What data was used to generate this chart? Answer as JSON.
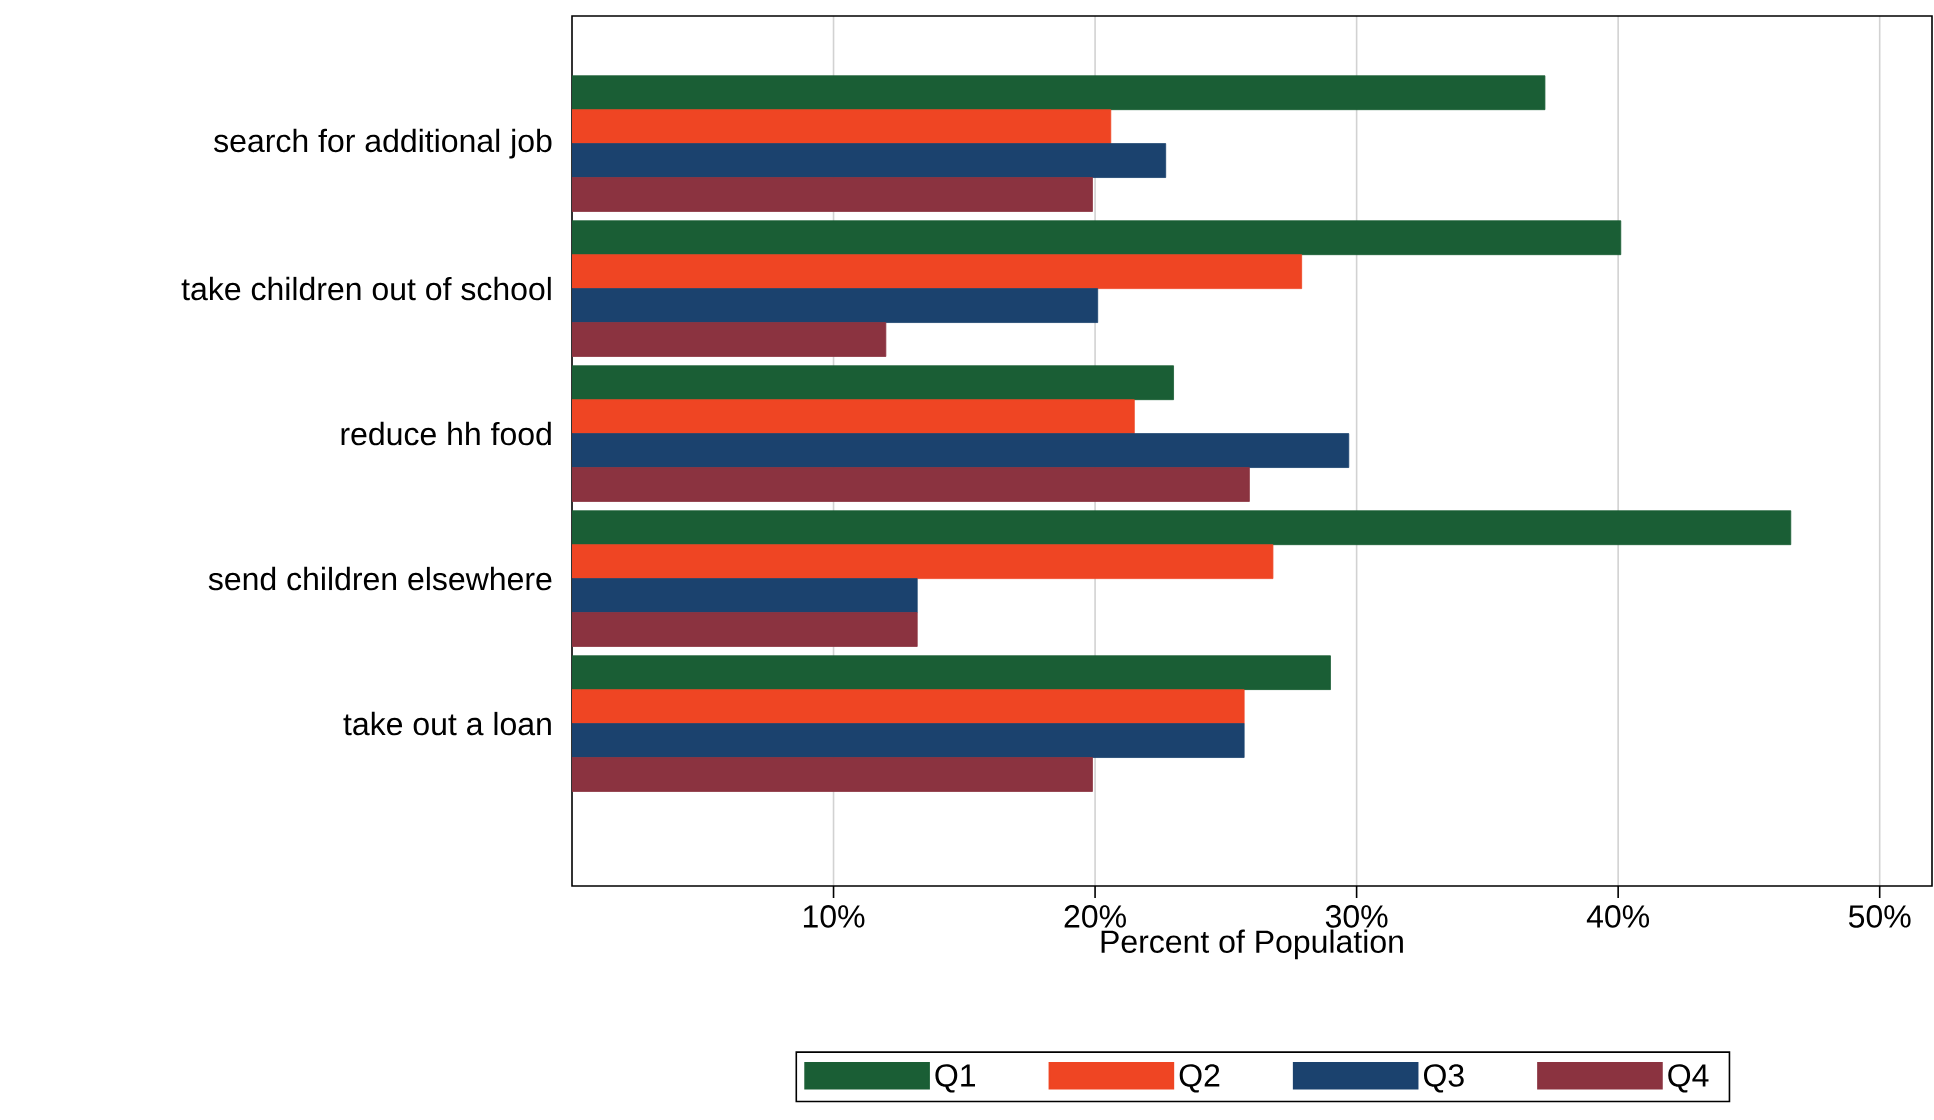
{
  "chart_data": {
    "type": "bar",
    "orientation": "horizontal",
    "xlabel": "Percent of Population",
    "categories": [
      "search for additional job",
      "take children out of school",
      "reduce hh food",
      "send children elsewhere",
      "take out a loan"
    ],
    "series": [
      {
        "name": "Q1",
        "color": "#1a5e35",
        "values": [
          37.2,
          40.1,
          23.0,
          46.6,
          29.0
        ]
      },
      {
        "name": "Q2",
        "color": "#ef4523",
        "values": [
          20.6,
          27.9,
          21.5,
          26.8,
          25.7
        ]
      },
      {
        "name": "Q3",
        "color": "#1b426e",
        "values": [
          22.7,
          20.1,
          29.7,
          13.2,
          25.7
        ]
      },
      {
        "name": "Q4",
        "color": "#8b3340",
        "values": [
          19.9,
          12.0,
          25.9,
          13.2,
          19.9
        ]
      }
    ],
    "xlim": [
      0,
      52
    ],
    "xticks": [
      {
        "value": 10,
        "label": "10%"
      },
      {
        "value": 20,
        "label": "20%"
      },
      {
        "value": 30,
        "label": "30%"
      },
      {
        "value": 40,
        "label": "40%"
      },
      {
        "value": 50,
        "label": "50%"
      }
    ],
    "grid": "x",
    "legend": "bottom"
  }
}
